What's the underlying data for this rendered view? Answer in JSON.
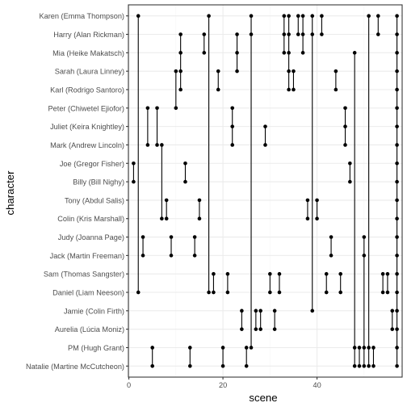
{
  "chart_data": {
    "type": "scatter",
    "title": "",
    "xlabel": "scene",
    "ylabel": "character",
    "xlim": [
      -0.1,
      58.1
    ],
    "x_ticks": [
      0,
      20,
      40
    ],
    "grid": true,
    "legend": "none",
    "colors": {
      "panel_border": "#333333",
      "grid_major": "#ebebeb",
      "grid_minor": "#f5f5f5",
      "point": "#000000",
      "axis_text": "#4d4d4d",
      "axis_title": "#000000"
    },
    "categories": [
      "Natalie (Martine McCutcheon)",
      "PM (Hugh Grant)",
      "Aurelia (Lúcia Moniz)",
      "Jamie (Colin Firth)",
      "Daniel (Liam Neeson)",
      "Sam (Thomas Sangster)",
      "Jack (Martin Freeman)",
      "Judy (Joanna Page)",
      "Colin (Kris Marshall)",
      "Tony (Abdul Salis)",
      "Billy (Bill Nighy)",
      "Joe (Gregor Fisher)",
      "Mark (Andrew Lincoln)",
      "Juliet (Keira Knightley)",
      "Peter (Chiwetel Ejiofor)",
      "Karl (Rodrigo Santoro)",
      "Sarah (Laura Linney)",
      "Mia (Heike Makatsch)",
      "Harry (Alan Rickman)",
      "Karen (Emma Thompson)"
    ],
    "points": [
      {
        "character": "Joe (Gregor Fisher)",
        "scene": 1
      },
      {
        "character": "Billy (Bill Nighy)",
        "scene": 1
      },
      {
        "character": "Daniel (Liam Neeson)",
        "scene": 2
      },
      {
        "character": "Karen (Emma Thompson)",
        "scene": 2
      },
      {
        "character": "Judy (Joanna Page)",
        "scene": 3
      },
      {
        "character": "Jack (Martin Freeman)",
        "scene": 3
      },
      {
        "character": "Peter (Chiwetel Ejiofor)",
        "scene": 4
      },
      {
        "character": "Mark (Andrew Lincoln)",
        "scene": 4
      },
      {
        "character": "Natalie (Martine McCutcheon)",
        "scene": 5
      },
      {
        "character": "PM (Hugh Grant)",
        "scene": 5
      },
      {
        "character": "Peter (Chiwetel Ejiofor)",
        "scene": 6
      },
      {
        "character": "Mark (Andrew Lincoln)",
        "scene": 6
      },
      {
        "character": "Colin (Kris Marshall)",
        "scene": 7
      },
      {
        "character": "Mark (Andrew Lincoln)",
        "scene": 7
      },
      {
        "character": "Colin (Kris Marshall)",
        "scene": 8
      },
      {
        "character": "Tony (Abdul Salis)",
        "scene": 8
      },
      {
        "character": "Jack (Martin Freeman)",
        "scene": 9
      },
      {
        "character": "Judy (Joanna Page)",
        "scene": 9
      },
      {
        "character": "Peter (Chiwetel Ejiofor)",
        "scene": 10
      },
      {
        "character": "Sarah (Laura Linney)",
        "scene": 10
      },
      {
        "character": "Karl (Rodrigo Santoro)",
        "scene": 11
      },
      {
        "character": "Sarah (Laura Linney)",
        "scene": 11
      },
      {
        "character": "Mia (Heike Makatsch)",
        "scene": 11
      },
      {
        "character": "Harry (Alan Rickman)",
        "scene": 11
      },
      {
        "character": "Billy (Bill Nighy)",
        "scene": 12
      },
      {
        "character": "Joe (Gregor Fisher)",
        "scene": 12
      },
      {
        "character": "Natalie (Martine McCutcheon)",
        "scene": 13
      },
      {
        "character": "PM (Hugh Grant)",
        "scene": 13
      },
      {
        "character": "Jack (Martin Freeman)",
        "scene": 14
      },
      {
        "character": "Judy (Joanna Page)",
        "scene": 14
      },
      {
        "character": "Colin (Kris Marshall)",
        "scene": 15
      },
      {
        "character": "Tony (Abdul Salis)",
        "scene": 15
      },
      {
        "character": "Mia (Heike Makatsch)",
        "scene": 16
      },
      {
        "character": "Harry (Alan Rickman)",
        "scene": 16
      },
      {
        "character": "Daniel (Liam Neeson)",
        "scene": 17
      },
      {
        "character": "Karen (Emma Thompson)",
        "scene": 17
      },
      {
        "character": "Daniel (Liam Neeson)",
        "scene": 18
      },
      {
        "character": "Sam (Thomas Sangster)",
        "scene": 18
      },
      {
        "character": "Karl (Rodrigo Santoro)",
        "scene": 19
      },
      {
        "character": "Sarah (Laura Linney)",
        "scene": 19
      },
      {
        "character": "Natalie (Martine McCutcheon)",
        "scene": 20
      },
      {
        "character": "PM (Hugh Grant)",
        "scene": 20
      },
      {
        "character": "Daniel (Liam Neeson)",
        "scene": 21
      },
      {
        "character": "Sam (Thomas Sangster)",
        "scene": 21
      },
      {
        "character": "Mark (Andrew Lincoln)",
        "scene": 22
      },
      {
        "character": "Juliet (Keira Knightley)",
        "scene": 22
      },
      {
        "character": "Peter (Chiwetel Ejiofor)",
        "scene": 22
      },
      {
        "character": "Sarah (Laura Linney)",
        "scene": 23
      },
      {
        "character": "Mia (Heike Makatsch)",
        "scene": 23
      },
      {
        "character": "Harry (Alan Rickman)",
        "scene": 23
      },
      {
        "character": "Aurelia (Lúcia Moniz)",
        "scene": 24
      },
      {
        "character": "Jamie (Colin Firth)",
        "scene": 24
      },
      {
        "character": "Natalie (Martine McCutcheon)",
        "scene": 25
      },
      {
        "character": "PM (Hugh Grant)",
        "scene": 25
      },
      {
        "character": "PM (Hugh Grant)",
        "scene": 26
      },
      {
        "character": "Harry (Alan Rickman)",
        "scene": 26
      },
      {
        "character": "Karen (Emma Thompson)",
        "scene": 26
      },
      {
        "character": "Aurelia (Lúcia Moniz)",
        "scene": 27
      },
      {
        "character": "Jamie (Colin Firth)",
        "scene": 27
      },
      {
        "character": "Aurelia (Lúcia Moniz)",
        "scene": 28
      },
      {
        "character": "Jamie (Colin Firth)",
        "scene": 28
      },
      {
        "character": "Mark (Andrew Lincoln)",
        "scene": 29
      },
      {
        "character": "Juliet (Keira Knightley)",
        "scene": 29
      },
      {
        "character": "Daniel (Liam Neeson)",
        "scene": 30
      },
      {
        "character": "Sam (Thomas Sangster)",
        "scene": 30
      },
      {
        "character": "Aurelia (Lúcia Moniz)",
        "scene": 31
      },
      {
        "character": "Jamie (Colin Firth)",
        "scene": 31
      },
      {
        "character": "Daniel (Liam Neeson)",
        "scene": 32
      },
      {
        "character": "Sam (Thomas Sangster)",
        "scene": 32
      },
      {
        "character": "Mia (Heike Makatsch)",
        "scene": 33
      },
      {
        "character": "Harry (Alan Rickman)",
        "scene": 33
      },
      {
        "character": "Karen (Emma Thompson)",
        "scene": 33
      },
      {
        "character": "Karl (Rodrigo Santoro)",
        "scene": 34
      },
      {
        "character": "Sarah (Laura Linney)",
        "scene": 34
      },
      {
        "character": "Mia (Heike Makatsch)",
        "scene": 34
      },
      {
        "character": "Harry (Alan Rickman)",
        "scene": 34
      },
      {
        "character": "Karen (Emma Thompson)",
        "scene": 34
      },
      {
        "character": "Karl (Rodrigo Santoro)",
        "scene": 35
      },
      {
        "character": "Sarah (Laura Linney)",
        "scene": 35
      },
      {
        "character": "Harry (Alan Rickman)",
        "scene": 36
      },
      {
        "character": "Karen (Emma Thompson)",
        "scene": 36
      },
      {
        "character": "Mia (Heike Makatsch)",
        "scene": 37
      },
      {
        "character": "Harry (Alan Rickman)",
        "scene": 37
      },
      {
        "character": "Karen (Emma Thompson)",
        "scene": 37
      },
      {
        "character": "Colin (Kris Marshall)",
        "scene": 38
      },
      {
        "character": "Tony (Abdul Salis)",
        "scene": 38
      },
      {
        "character": "Jamie (Colin Firth)",
        "scene": 39
      },
      {
        "character": "Harry (Alan Rickman)",
        "scene": 39
      },
      {
        "character": "Karen (Emma Thompson)",
        "scene": 39
      },
      {
        "character": "Colin (Kris Marshall)",
        "scene": 40
      },
      {
        "character": "Tony (Abdul Salis)",
        "scene": 40
      },
      {
        "character": "Harry (Alan Rickman)",
        "scene": 41
      },
      {
        "character": "Karen (Emma Thompson)",
        "scene": 41
      },
      {
        "character": "Daniel (Liam Neeson)",
        "scene": 42
      },
      {
        "character": "Sam (Thomas Sangster)",
        "scene": 42
      },
      {
        "character": "Jack (Martin Freeman)",
        "scene": 43
      },
      {
        "character": "Judy (Joanna Page)",
        "scene": 43
      },
      {
        "character": "Karl (Rodrigo Santoro)",
        "scene": 44
      },
      {
        "character": "Sarah (Laura Linney)",
        "scene": 44
      },
      {
        "character": "Daniel (Liam Neeson)",
        "scene": 45
      },
      {
        "character": "Sam (Thomas Sangster)",
        "scene": 45
      },
      {
        "character": "Mark (Andrew Lincoln)",
        "scene": 46
      },
      {
        "character": "Juliet (Keira Knightley)",
        "scene": 46
      },
      {
        "character": "Peter (Chiwetel Ejiofor)",
        "scene": 46
      },
      {
        "character": "Billy (Bill Nighy)",
        "scene": 47
      },
      {
        "character": "Joe (Gregor Fisher)",
        "scene": 47
      },
      {
        "character": "Natalie (Martine McCutcheon)",
        "scene": 48
      },
      {
        "character": "PM (Hugh Grant)",
        "scene": 48
      },
      {
        "character": "Mia (Heike Makatsch)",
        "scene": 48
      },
      {
        "character": "Natalie (Martine McCutcheon)",
        "scene": 49
      },
      {
        "character": "PM (Hugh Grant)",
        "scene": 49
      },
      {
        "character": "Natalie (Martine McCutcheon)",
        "scene": 50
      },
      {
        "character": "PM (Hugh Grant)",
        "scene": 50
      },
      {
        "character": "Jack (Martin Freeman)",
        "scene": 50
      },
      {
        "character": "Judy (Joanna Page)",
        "scene": 50
      },
      {
        "character": "Natalie (Martine McCutcheon)",
        "scene": 51
      },
      {
        "character": "PM (Hugh Grant)",
        "scene": 51
      },
      {
        "character": "Karen (Emma Thompson)",
        "scene": 51
      },
      {
        "character": "Natalie (Martine McCutcheon)",
        "scene": 52
      },
      {
        "character": "PM (Hugh Grant)",
        "scene": 52
      },
      {
        "character": "Harry (Alan Rickman)",
        "scene": 53
      },
      {
        "character": "Karen (Emma Thompson)",
        "scene": 53
      },
      {
        "character": "Daniel (Liam Neeson)",
        "scene": 54
      },
      {
        "character": "Sam (Thomas Sangster)",
        "scene": 54
      },
      {
        "character": "Daniel (Liam Neeson)",
        "scene": 55
      },
      {
        "character": "Sam (Thomas Sangster)",
        "scene": 55
      },
      {
        "character": "Aurelia (Lúcia Moniz)",
        "scene": 56
      },
      {
        "character": "Jamie (Colin Firth)",
        "scene": 56
      },
      {
        "character": "Natalie (Martine McCutcheon)",
        "scene": 57
      },
      {
        "character": "PM (Hugh Grant)",
        "scene": 57
      },
      {
        "character": "Aurelia (Lúcia Moniz)",
        "scene": 57
      },
      {
        "character": "Jamie (Colin Firth)",
        "scene": 57
      },
      {
        "character": "Daniel (Liam Neeson)",
        "scene": 57
      },
      {
        "character": "Sam (Thomas Sangster)",
        "scene": 57
      },
      {
        "character": "Jack (Martin Freeman)",
        "scene": 57
      },
      {
        "character": "Judy (Joanna Page)",
        "scene": 57
      },
      {
        "character": "Colin (Kris Marshall)",
        "scene": 57
      },
      {
        "character": "Tony (Abdul Salis)",
        "scene": 57
      },
      {
        "character": "Billy (Bill Nighy)",
        "scene": 57
      },
      {
        "character": "Joe (Gregor Fisher)",
        "scene": 57
      },
      {
        "character": "Mark (Andrew Lincoln)",
        "scene": 57
      },
      {
        "character": "Juliet (Keira Knightley)",
        "scene": 57
      },
      {
        "character": "Peter (Chiwetel Ejiofor)",
        "scene": 57
      },
      {
        "character": "Karl (Rodrigo Santoro)",
        "scene": 57
      },
      {
        "character": "Sarah (Laura Linney)",
        "scene": 57
      },
      {
        "character": "Mia (Heike Makatsch)",
        "scene": 57
      },
      {
        "character": "Harry (Alan Rickman)",
        "scene": 57
      },
      {
        "character": "Karen (Emma Thompson)",
        "scene": 57
      }
    ]
  }
}
